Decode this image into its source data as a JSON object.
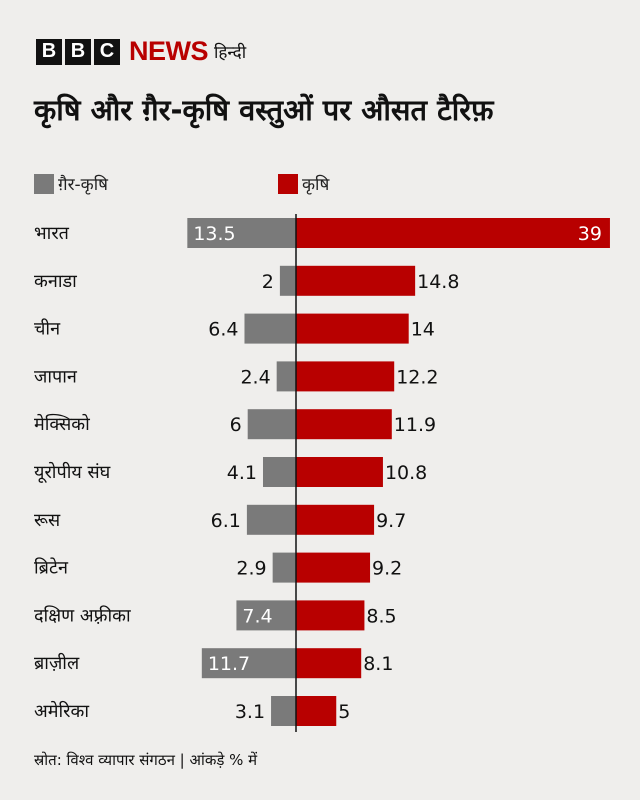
{
  "logo": {
    "letters": [
      "B",
      "B",
      "C"
    ],
    "news": "NEWS",
    "hindi": "हिन्दी"
  },
  "title": "कृषि और ग़ैर-कृषि वस्तुओं पर औसत टैरिफ़",
  "legend": {
    "non_agri": {
      "label": "ग़ैर-कृषि",
      "color": "#7a7a7a"
    },
    "agri": {
      "label": "कृषि",
      "color": "#b80000"
    }
  },
  "source": "स्रोत: विश्व व्यापार संगठन | आंकड़े % में",
  "chart_data": {
    "type": "bar",
    "orientation": "horizontal-diverging",
    "categories": [
      "भारत",
      "कनाडा",
      "चीन",
      "जापान",
      "मेक्सिको",
      "यूरोपीय संघ",
      "रूस",
      "ब्रिटेन",
      "दक्षिण अफ़्रीका",
      "ब्राज़ील",
      "अमेरिका"
    ],
    "series": [
      {
        "name": "ग़ैर-कृषि",
        "color": "#7a7a7a",
        "values": [
          13.5,
          2,
          6.4,
          2.4,
          6,
          4.1,
          6.1,
          2.9,
          7.4,
          11.7,
          3.1
        ]
      },
      {
        "name": "कृषि",
        "color": "#b80000",
        "values": [
          39,
          14.8,
          14,
          12.2,
          11.9,
          10.8,
          9.7,
          9.2,
          8.5,
          8.1,
          5
        ]
      }
    ],
    "data_labels": {
      "ग़ैर-कृषि": [
        "13.5",
        "2",
        "6.4",
        "2.4",
        "6",
        "4.1",
        "6.1",
        "2.9",
        "7.4",
        "11.7",
        "3.1"
      ],
      "कृषि": [
        "39",
        "14.8",
        "14",
        "12.2",
        "11.9",
        "10.8",
        "9.7",
        "9.2",
        "8.5",
        "8.1",
        "5"
      ]
    },
    "inside_labels": {
      "ग़ैर-कृषि": [
        true,
        false,
        false,
        false,
        false,
        false,
        false,
        false,
        true,
        true,
        false
      ],
      "कृषि": [
        true,
        false,
        false,
        false,
        false,
        false,
        false,
        false,
        false,
        false,
        false
      ]
    }
  }
}
